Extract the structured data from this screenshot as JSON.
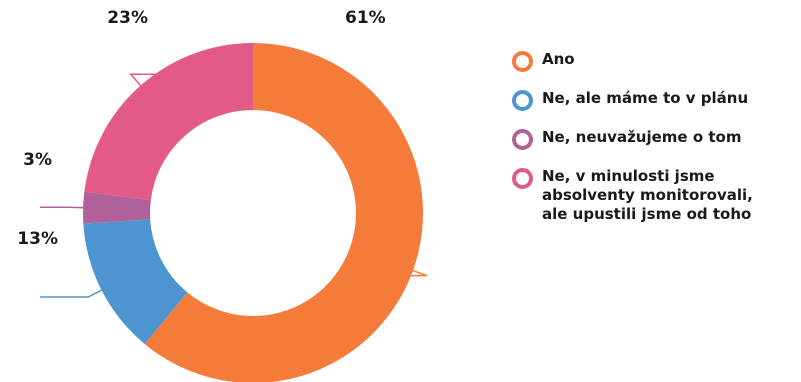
{
  "chart_data": {
    "type": "pie",
    "variant": "donut",
    "title": "",
    "categories": [
      "Ano",
      "Ne, ale máme to v plánu",
      "Ne, neuvažujeme o tom",
      "Ne, v minulosti jsme absolventy monitorovali, ale upustili jsme od toho"
    ],
    "values": [
      61,
      13,
      3,
      23
    ],
    "value_labels": [
      "61%",
      "13%",
      "3%",
      "23%"
    ],
    "colors": [
      "#f47b3a",
      "#4d95d1",
      "#b0619a",
      "#e35a86"
    ],
    "legend": {
      "placement": "right",
      "items": [
        {
          "label": "Ano",
          "color": "#f47b3a"
        },
        {
          "label": "Ne, ale máme to v plánu",
          "color": "#4d95d1"
        },
        {
          "label": "Ne, neuvažujeme o tom",
          "color": "#b0619a"
        },
        {
          "label": "Ne, v minulosti jsme\nabsolventy monitorovali,\nale upustili jsme od toho",
          "color": "#e35a86"
        }
      ]
    }
  }
}
